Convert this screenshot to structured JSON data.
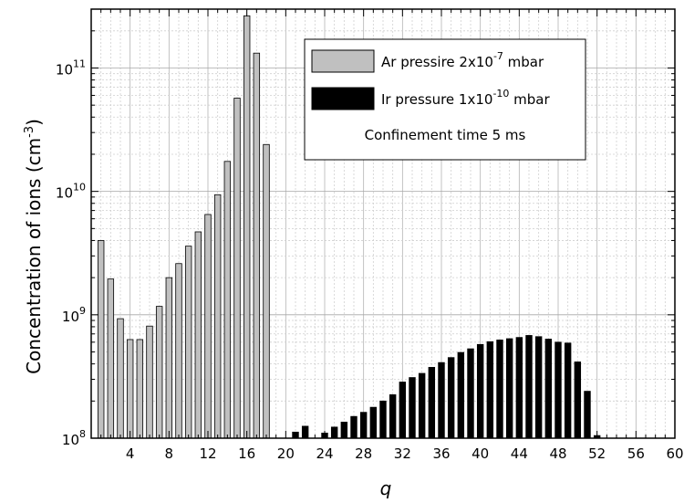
{
  "chart_data": {
    "type": "bar",
    "title": "",
    "xlabel": "q",
    "ylabel": "Concentration of ions (cm",
    "ylabel_sup": "-3",
    "ylabel_end": ")",
    "xlim": [
      0,
      60
    ],
    "ylim": [
      100000000,
      300000000000
    ],
    "yscale": "log",
    "grid": true,
    "legend_placement": "top-right",
    "x_ticks": [
      4,
      8,
      12,
      16,
      20,
      24,
      28,
      32,
      36,
      40,
      44,
      48,
      52,
      56,
      60
    ],
    "y_ticks": [
      {
        "base": "10",
        "exp": "8",
        "value": 100000000
      },
      {
        "base": "10",
        "exp": "9",
        "value": 1000000000
      },
      {
        "base": "10",
        "exp": "10",
        "value": 10000000000
      },
      {
        "base": "10",
        "exp": "11",
        "value": 100000000000
      }
    ],
    "series": [
      {
        "color": "#c0c0c0",
        "legend": {
          "pre": "Ar pressire 2x10",
          "sup": "-7",
          "post": " mbar"
        },
        "x": [
          1,
          2,
          3,
          4,
          5,
          6,
          7,
          8,
          9,
          10,
          11,
          12,
          13,
          14,
          15,
          16,
          17,
          18
        ],
        "values": [
          4000000000.0,
          1950000000.0,
          930000000.0,
          630000000.0,
          630000000.0,
          810000000.0,
          1170000000.0,
          2000000000.0,
          2600000000.0,
          3600000000.0,
          4700000000.0,
          6500000000.0,
          9400000000.0,
          17500000000.0,
          57000000000.0,
          265000000000.0,
          132000000000.0,
          24000000000.0
        ]
      },
      {
        "color": "#000000",
        "legend": {
          "pre": "Ir pressure 1x10",
          "sup": "-10",
          "post": " mbar"
        },
        "x": [
          21,
          22,
          24,
          25,
          26,
          27,
          28,
          29,
          30,
          31,
          32,
          33,
          34,
          35,
          36,
          37,
          38,
          39,
          40,
          41,
          42,
          43,
          44,
          45,
          46,
          47,
          48,
          49,
          50,
          51,
          52
        ],
        "values": [
          112000000.0,
          125000000.0,
          110000000.0,
          123000000.0,
          135000000.0,
          150000000.0,
          162000000.0,
          178000000.0,
          200000000.0,
          225000000.0,
          285000000.0,
          310000000.0,
          335000000.0,
          375000000.0,
          410000000.0,
          450000000.0,
          495000000.0,
          530000000.0,
          575000000.0,
          605000000.0,
          625000000.0,
          640000000.0,
          655000000.0,
          680000000.0,
          665000000.0,
          635000000.0,
          600000000.0,
          590000000.0,
          415000000.0,
          240000000.0,
          105000000.0
        ]
      }
    ],
    "annotation": "Confinement time 5 ms"
  }
}
